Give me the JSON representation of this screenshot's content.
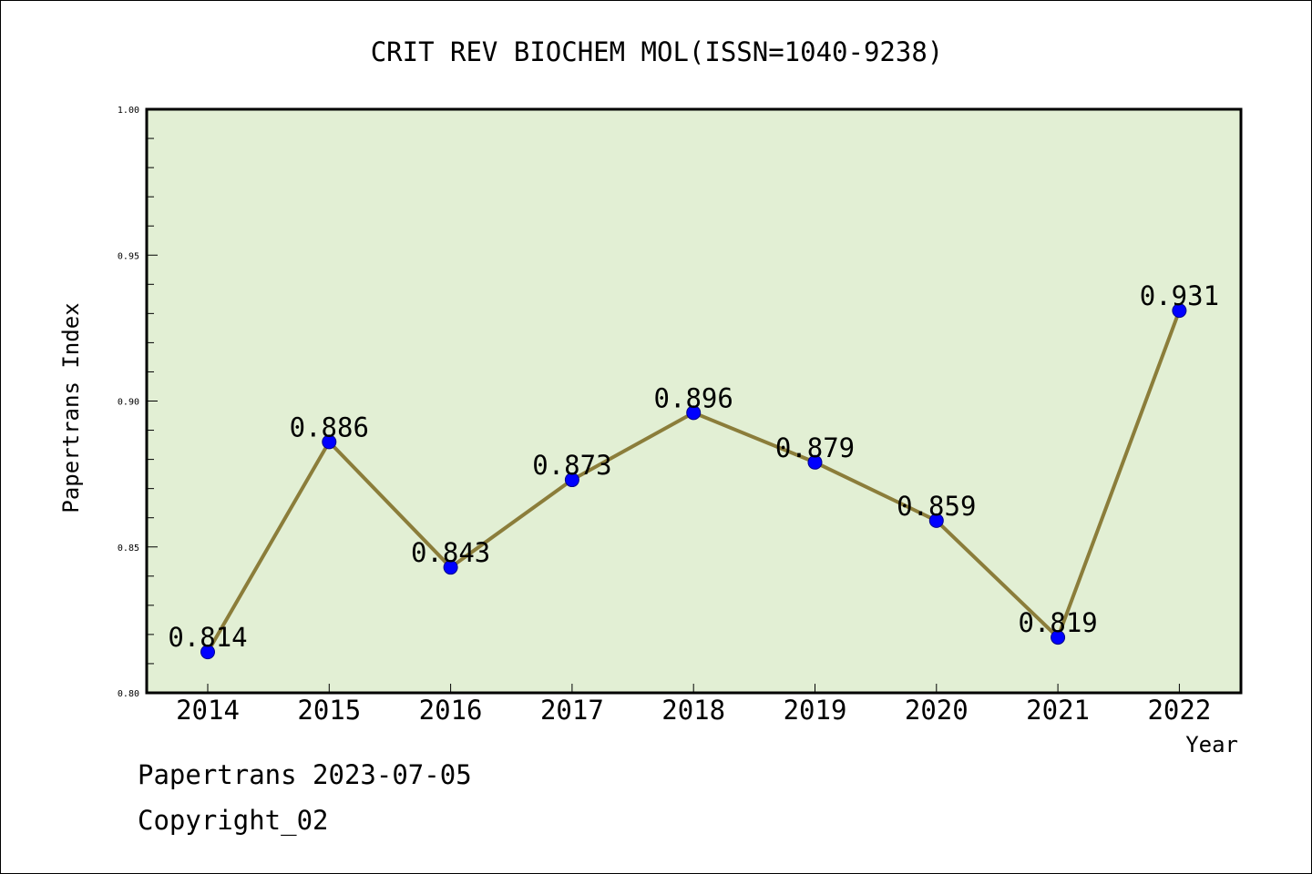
{
  "chart_data": {
    "type": "line",
    "title": "CRIT REV BIOCHEM MOL(ISSN=1040-9238)",
    "xlabel": "Year",
    "ylabel": "Papertrans Index",
    "categories": [
      "2014",
      "2015",
      "2016",
      "2017",
      "2018",
      "2019",
      "2020",
      "2021",
      "2022"
    ],
    "series": [
      {
        "values": [
          0.814,
          0.886,
          0.843,
          0.873,
          0.896,
          0.879,
          0.859,
          0.819,
          0.931
        ],
        "labels": [
          "0.814",
          "0.886",
          "0.843",
          "0.873",
          "0.896",
          "0.879",
          "0.859",
          "0.819",
          "0.931"
        ]
      }
    ],
    "ylim": [
      0.8,
      1.0
    ],
    "yticks": [
      "0.80",
      "0.85",
      "0.90",
      "0.95",
      "1.00"
    ],
    "grid": false,
    "colors": {
      "plot_background": "#e2efd4",
      "line": "#8b7d3a",
      "marker": "#0000ff",
      "axis": "#000000"
    }
  },
  "footer": {
    "line1": "Papertrans 2023-07-05",
    "line2": "Copyright_02"
  }
}
